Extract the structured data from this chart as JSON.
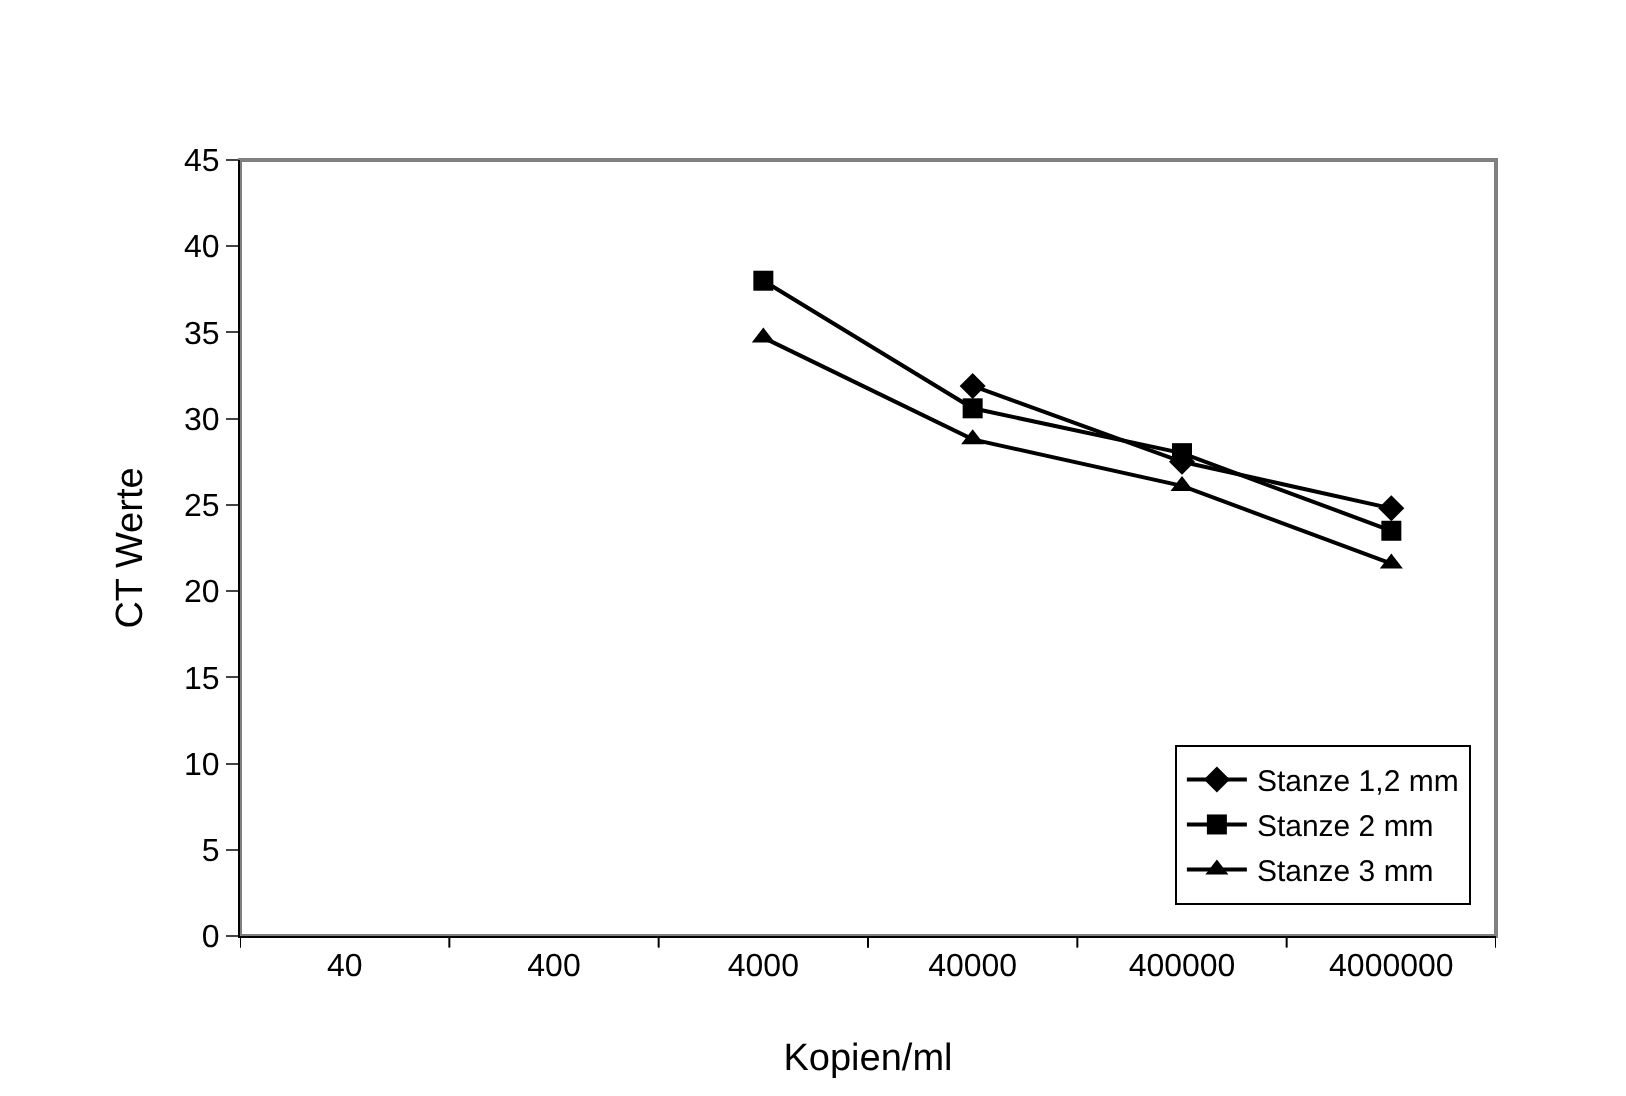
{
  "chart_data": {
    "type": "line",
    "xlabel": "Kopien/ml",
    "ylabel": "CT Werte",
    "categories": [
      "40",
      "400",
      "4000",
      "40000",
      "400000",
      "4000000"
    ],
    "series": [
      {
        "name": "Stanze 1,2 mm",
        "color": "#000000",
        "marker": "diamond",
        "values": [
          null,
          null,
          null,
          31.9,
          27.5,
          24.8
        ]
      },
      {
        "name": "Stanze 2 mm",
        "color": "#000000",
        "marker": "square",
        "values": [
          null,
          null,
          38.0,
          30.6,
          28.0,
          23.5
        ]
      },
      {
        "name": "Stanze 3 mm",
        "color": "#000000",
        "marker": "triangle",
        "values": [
          null,
          null,
          34.7,
          28.8,
          26.1,
          21.6
        ]
      }
    ],
    "ylim": [
      0,
      45
    ],
    "yticks": [
      0,
      5,
      10,
      15,
      20,
      25,
      30,
      35,
      40,
      45
    ],
    "grid": false,
    "legend": "bottom right",
    "line_style": "solid"
  }
}
